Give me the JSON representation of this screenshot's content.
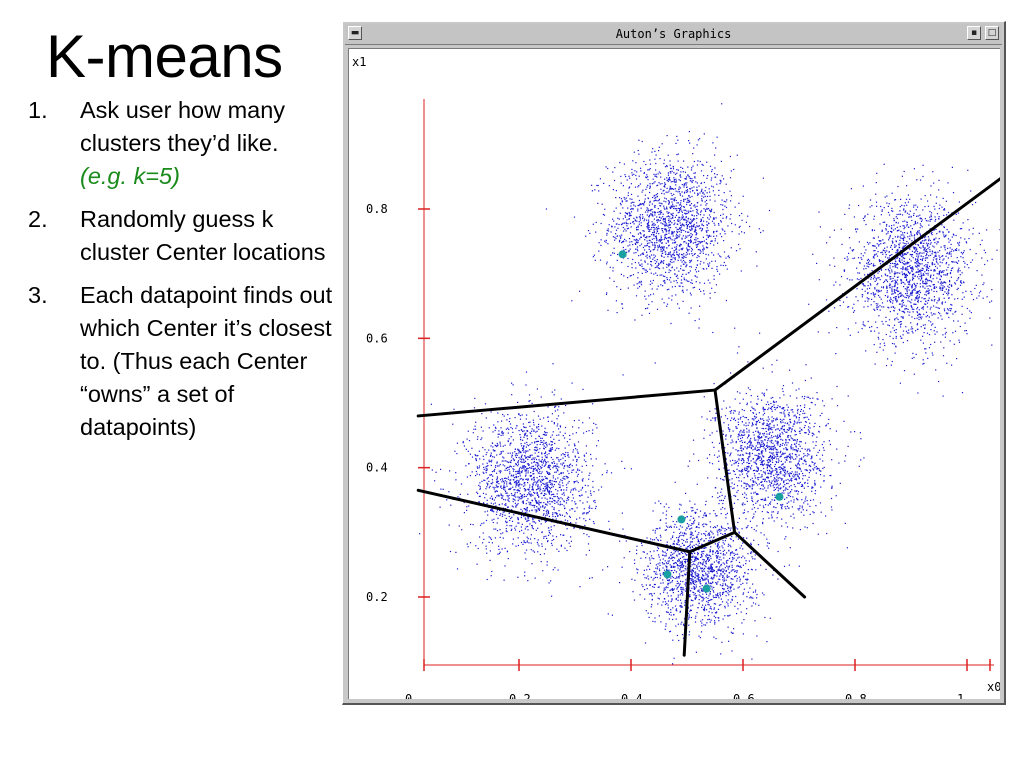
{
  "slide": {
    "title": "K-means",
    "steps": [
      {
        "num": "1.",
        "text": "Ask user how many clusters they’d like.",
        "note": "(e.g. k=5)"
      },
      {
        "num": "2.",
        "text": "Randomly guess k cluster Center locations",
        "note": ""
      },
      {
        "num": "3.",
        "text": "Each datapoint finds out which Center it’s closest to. (Thus each Center “owns” a set of datapoints)",
        "note": ""
      }
    ]
  },
  "window": {
    "title": "Auton’s Graphics",
    "menu_icon": "window-menu-icon",
    "minimize_icon": "minimize-icon",
    "maximize_icon": "maximize-icon"
  },
  "chart_data": {
    "type": "scatter",
    "title": "",
    "xlabel": "x0",
    "ylabel": "x1",
    "xlim": [
      0,
      1.05
    ],
    "ylim": [
      0.1,
      0.95
    ],
    "x_ticks": [
      0,
      0.2,
      0.4,
      0.6,
      0.8,
      1
    ],
    "x_tick_labels": [
      "0",
      "0.2",
      "0.4",
      "0.6",
      "0.8",
      "1"
    ],
    "y_ticks": [
      0.2,
      0.4,
      0.6,
      0.8
    ],
    "y_tick_labels": [
      "0.2",
      "0.4",
      "0.6",
      "0.8"
    ],
    "grid": false,
    "axis_color": "#dd2020",
    "point_color": "#1a1ad0",
    "center_color": "#1aa0a0",
    "boundary_color": "#000000",
    "clusters": [
      {
        "cx": 0.47,
        "cy": 0.775,
        "sx": 0.055,
        "sy": 0.055,
        "n": 1700
      },
      {
        "cx": 0.9,
        "cy": 0.705,
        "sx": 0.055,
        "sy": 0.055,
        "n": 1700
      },
      {
        "cx": 0.22,
        "cy": 0.38,
        "sx": 0.055,
        "sy": 0.055,
        "n": 1700
      },
      {
        "cx": 0.65,
        "cy": 0.42,
        "sx": 0.05,
        "sy": 0.05,
        "n": 1500
      },
      {
        "cx": 0.52,
        "cy": 0.245,
        "sx": 0.05,
        "sy": 0.045,
        "n": 1500
      }
    ],
    "centers": [
      {
        "x": 0.385,
        "y": 0.73
      },
      {
        "x": 0.665,
        "y": 0.355
      },
      {
        "x": 0.49,
        "y": 0.32
      },
      {
        "x": 0.465,
        "y": 0.235
      },
      {
        "x": 0.535,
        "y": 0.213
      }
    ],
    "boundaries": [
      [
        [
          0.55,
          0.52
        ],
        [
          1.08,
          0.86
        ]
      ],
      [
        [
          0.02,
          0.48
        ],
        [
          0.55,
          0.52
        ]
      ],
      [
        [
          0.55,
          0.52
        ],
        [
          0.585,
          0.3
        ]
      ],
      [
        [
          0.02,
          0.365
        ],
        [
          0.505,
          0.27
        ]
      ],
      [
        [
          0.505,
          0.27
        ],
        [
          0.585,
          0.3
        ]
      ],
      [
        [
          0.585,
          0.3
        ],
        [
          0.71,
          0.2
        ]
      ],
      [
        [
          0.505,
          0.27
        ],
        [
          0.495,
          0.11
        ]
      ]
    ]
  }
}
